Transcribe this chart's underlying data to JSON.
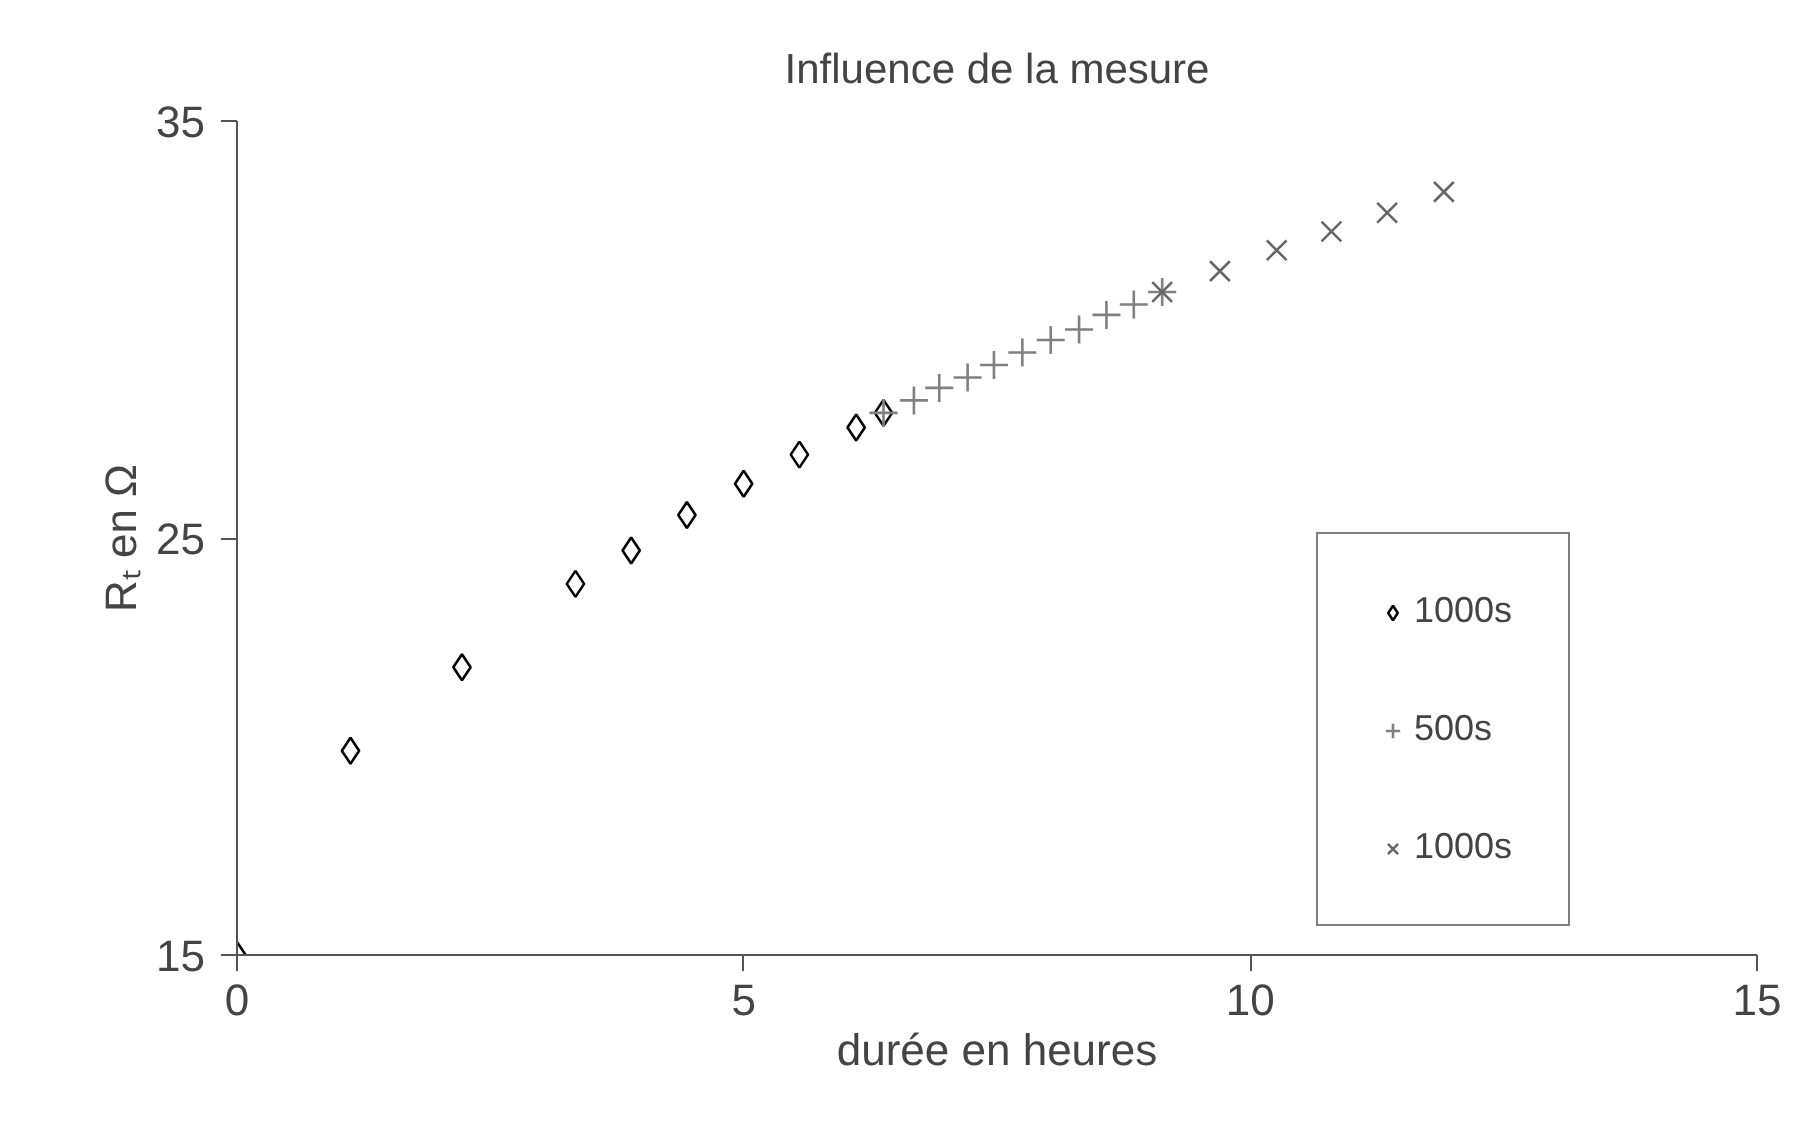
{
  "chart_data": {
    "type": "scatter",
    "title": "Influence de la mesure",
    "xlabel": "durée en heures",
    "ylabel": "Rₜ en Ω",
    "xlim": [
      0,
      15
    ],
    "ylim": [
      15,
      35
    ],
    "xticks": [
      0,
      5,
      10,
      15
    ],
    "yticks": [
      15,
      25,
      35
    ],
    "grid": false,
    "legend": "bottom right",
    "series": [
      {
        "name": "1000s",
        "color": "#000000",
        "marker": "diamond",
        "x": [
          0,
          1.12,
          2.22,
          3.34,
          3.89,
          4.44,
          5.0,
          5.55,
          6.11,
          6.38
        ],
        "values": [
          15,
          19.9,
          21.9,
          23.9,
          24.7,
          25.55,
          26.3,
          27.0,
          27.65,
          28.0
        ]
      },
      {
        "name": "500s",
        "color": "#808080",
        "marker": "cross",
        "x": [
          6.38,
          6.68,
          6.93,
          7.21,
          7.47,
          7.75,
          8.03,
          8.31,
          8.58,
          8.85,
          9.13
        ],
        "values": [
          28.0,
          28.3,
          28.6,
          28.85,
          29.15,
          29.45,
          29.75,
          30.0,
          30.35,
          30.6,
          30.9
        ]
      },
      {
        "name": "1000s",
        "color": "#666666",
        "marker": "x",
        "x": [
          9.13,
          9.7,
          10.26,
          10.8,
          11.35,
          11.91
        ],
        "values": [
          30.9,
          31.4,
          31.9,
          32.35,
          32.8,
          33.3
        ]
      }
    ]
  }
}
